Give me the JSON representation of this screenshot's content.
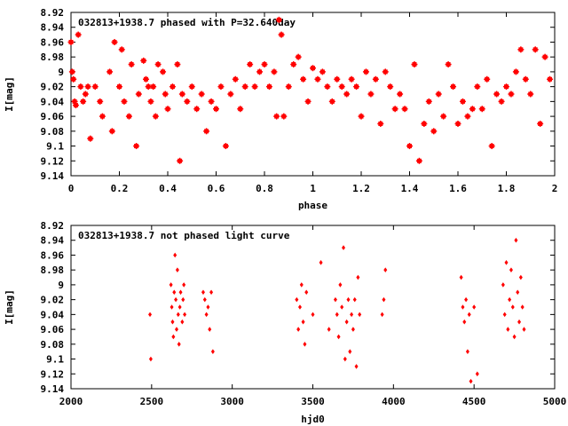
{
  "chart_data": [
    {
      "type": "scatter",
      "title": "032813+1938.7 phased with P=32.640day",
      "xlabel": "phase",
      "ylabel": "I[mag]",
      "xlim": [
        0,
        2
      ],
      "ylim": [
        9.14,
        8.92
      ],
      "y_inverted": true,
      "x_ticks": [
        "0",
        "0.2",
        "0.4",
        "0.6",
        "0.8",
        "1",
        "1.2",
        "1.4",
        "1.6",
        "1.8",
        "2"
      ],
      "y_ticks": [
        "8.92",
        "8.94",
        "8.96",
        "8.98",
        "9",
        "9.02",
        "9.04",
        "9.06",
        "9.08",
        "9.1",
        "9.12",
        "9.14"
      ],
      "marker_color": "#ff0000",
      "grid": false,
      "points": [
        [
          0.0,
          8.96
        ],
        [
          0.005,
          9.0
        ],
        [
          0.01,
          9.01
        ],
        [
          0.015,
          9.04
        ],
        [
          0.02,
          9.045
        ],
        [
          0.03,
          8.95
        ],
        [
          0.04,
          9.02
        ],
        [
          0.05,
          9.04
        ],
        [
          0.06,
          9.03
        ],
        [
          0.07,
          9.02
        ],
        [
          0.08,
          9.09
        ],
        [
          0.1,
          9.02
        ],
        [
          0.12,
          9.04
        ],
        [
          0.13,
          9.06
        ],
        [
          0.16,
          9.0
        ],
        [
          0.17,
          9.08
        ],
        [
          0.18,
          8.96
        ],
        [
          0.2,
          9.02
        ],
        [
          0.21,
          8.97
        ],
        [
          0.22,
          9.04
        ],
        [
          0.24,
          9.06
        ],
        [
          0.25,
          8.99
        ],
        [
          0.27,
          9.1
        ],
        [
          0.28,
          9.03
        ],
        [
          0.3,
          8.985
        ],
        [
          0.31,
          9.01
        ],
        [
          0.32,
          9.02
        ],
        [
          0.33,
          9.04
        ],
        [
          0.34,
          9.02
        ],
        [
          0.35,
          9.06
        ],
        [
          0.36,
          8.99
        ],
        [
          0.38,
          9.0
        ],
        [
          0.39,
          9.03
        ],
        [
          0.4,
          9.05
        ],
        [
          0.42,
          9.02
        ],
        [
          0.44,
          8.99
        ],
        [
          0.45,
          9.12
        ],
        [
          0.46,
          9.03
        ],
        [
          0.48,
          9.04
        ],
        [
          0.5,
          9.02
        ],
        [
          0.52,
          9.05
        ],
        [
          0.54,
          9.03
        ],
        [
          0.56,
          9.08
        ],
        [
          0.58,
          9.04
        ],
        [
          0.6,
          9.05
        ],
        [
          0.62,
          9.02
        ],
        [
          0.64,
          9.1
        ],
        [
          0.66,
          9.03
        ],
        [
          0.68,
          9.01
        ],
        [
          0.7,
          9.05
        ],
        [
          0.72,
          9.02
        ],
        [
          0.74,
          8.99
        ],
        [
          0.76,
          9.02
        ],
        [
          0.78,
          9.0
        ],
        [
          0.8,
          8.99
        ],
        [
          0.82,
          9.02
        ],
        [
          0.84,
          9.0
        ],
        [
          0.85,
          9.06
        ],
        [
          0.86,
          8.93
        ],
        [
          0.87,
          8.95
        ],
        [
          0.88,
          9.06
        ],
        [
          0.9,
          9.02
        ],
        [
          0.92,
          8.99
        ],
        [
          0.94,
          8.98
        ],
        [
          0.96,
          9.01
        ],
        [
          0.98,
          9.04
        ],
        [
          1.0,
          8.995
        ],
        [
          1.02,
          9.01
        ],
        [
          1.04,
          9.0
        ],
        [
          1.06,
          9.02
        ],
        [
          1.08,
          9.04
        ],
        [
          1.1,
          9.01
        ],
        [
          1.12,
          9.02
        ],
        [
          1.14,
          9.03
        ],
        [
          1.16,
          9.01
        ],
        [
          1.18,
          9.02
        ],
        [
          1.2,
          9.06
        ],
        [
          1.22,
          9.0
        ],
        [
          1.24,
          9.03
        ],
        [
          1.26,
          9.01
        ],
        [
          1.28,
          9.07
        ],
        [
          1.3,
          9.0
        ],
        [
          1.32,
          9.02
        ],
        [
          1.34,
          9.05
        ],
        [
          1.36,
          9.03
        ],
        [
          1.38,
          9.05
        ],
        [
          1.4,
          9.1
        ],
        [
          1.42,
          8.99
        ],
        [
          1.44,
          9.12
        ],
        [
          1.46,
          9.07
        ],
        [
          1.48,
          9.04
        ],
        [
          1.5,
          9.08
        ],
        [
          1.52,
          9.03
        ],
        [
          1.54,
          9.06
        ],
        [
          1.56,
          8.99
        ],
        [
          1.58,
          9.02
        ],
        [
          1.6,
          9.07
        ],
        [
          1.62,
          9.04
        ],
        [
          1.64,
          9.06
        ],
        [
          1.66,
          9.05
        ],
        [
          1.68,
          9.02
        ],
        [
          1.7,
          9.05
        ],
        [
          1.72,
          9.01
        ],
        [
          1.74,
          9.1
        ],
        [
          1.76,
          9.03
        ],
        [
          1.78,
          9.04
        ],
        [
          1.8,
          9.02
        ],
        [
          1.82,
          9.03
        ],
        [
          1.84,
          9.0
        ],
        [
          1.86,
          8.97
        ],
        [
          1.88,
          9.01
        ],
        [
          1.9,
          9.03
        ],
        [
          1.92,
          8.97
        ],
        [
          1.94,
          9.07
        ],
        [
          1.96,
          8.98
        ],
        [
          1.98,
          9.01
        ]
      ]
    },
    {
      "type": "scatter",
      "title": "032813+1938.7 not phased light curve",
      "xlabel": "hjd0",
      "ylabel": "I[mag]",
      "xlim": [
        2000,
        5000
      ],
      "ylim": [
        9.14,
        8.92
      ],
      "y_inverted": true,
      "x_ticks": [
        "2000",
        "2500",
        "3000",
        "3500",
        "4000",
        "4500",
        "5000"
      ],
      "y_ticks": [
        "8.92",
        "8.94",
        "8.96",
        "8.98",
        "9",
        "9.02",
        "9.04",
        "9.06",
        "9.08",
        "9.1",
        "9.12",
        "9.14"
      ],
      "marker_color": "#ff0000",
      "grid": false,
      "points": [
        [
          2490,
          9.04
        ],
        [
          2495,
          9.1
        ],
        [
          2620,
          9.0
        ],
        [
          2625,
          9.03
        ],
        [
          2630,
          9.05
        ],
        [
          2635,
          9.07
        ],
        [
          2640,
          9.01
        ],
        [
          2645,
          8.96
        ],
        [
          2650,
          9.02
        ],
        [
          2655,
          9.06
        ],
        [
          2660,
          8.98
        ],
        [
          2665,
          9.04
        ],
        [
          2670,
          9.08
        ],
        [
          2675,
          9.03
        ],
        [
          2680,
          9.01
        ],
        [
          2690,
          9.05
        ],
        [
          2695,
          9.02
        ],
        [
          2700,
          9.0
        ],
        [
          2705,
          9.04
        ],
        [
          2820,
          9.01
        ],
        [
          2830,
          9.02
        ],
        [
          2840,
          9.04
        ],
        [
          2850,
          9.03
        ],
        [
          2860,
          9.06
        ],
        [
          2870,
          9.01
        ],
        [
          2880,
          9.09
        ],
        [
          3400,
          9.02
        ],
        [
          3410,
          9.06
        ],
        [
          3420,
          9.03
        ],
        [
          3430,
          9.0
        ],
        [
          3440,
          9.05
        ],
        [
          3450,
          9.08
        ],
        [
          3460,
          9.01
        ],
        [
          3500,
          9.04
        ],
        [
          3550,
          8.97
        ],
        [
          3600,
          9.06
        ],
        [
          3640,
          9.02
        ],
        [
          3650,
          9.04
        ],
        [
          3660,
          9.07
        ],
        [
          3670,
          9.0
        ],
        [
          3680,
          9.03
        ],
        [
          3690,
          8.95
        ],
        [
          3700,
          9.1
        ],
        [
          3710,
          9.05
        ],
        [
          3720,
          9.02
        ],
        [
          3730,
          9.09
        ],
        [
          3740,
          9.04
        ],
        [
          3750,
          9.06
        ],
        [
          3760,
          9.02
        ],
        [
          3770,
          9.11
        ],
        [
          3780,
          8.99
        ],
        [
          3790,
          9.04
        ],
        [
          3930,
          9.04
        ],
        [
          3940,
          9.02
        ],
        [
          3950,
          8.98
        ],
        [
          4420,
          8.99
        ],
        [
          4430,
          9.03
        ],
        [
          4440,
          9.05
        ],
        [
          4450,
          9.02
        ],
        [
          4460,
          9.09
        ],
        [
          4470,
          9.04
        ],
        [
          4480,
          9.13
        ],
        [
          4500,
          9.03
        ],
        [
          4520,
          9.12
        ],
        [
          4680,
          9.0
        ],
        [
          4690,
          9.04
        ],
        [
          4700,
          8.97
        ],
        [
          4710,
          9.06
        ],
        [
          4720,
          9.02
        ],
        [
          4730,
          8.98
        ],
        [
          4740,
          9.03
        ],
        [
          4750,
          9.07
        ],
        [
          4760,
          8.94
        ],
        [
          4770,
          9.01
        ],
        [
          4780,
          9.05
        ],
        [
          4790,
          8.99
        ],
        [
          4800,
          9.03
        ],
        [
          4810,
          9.06
        ]
      ]
    }
  ]
}
